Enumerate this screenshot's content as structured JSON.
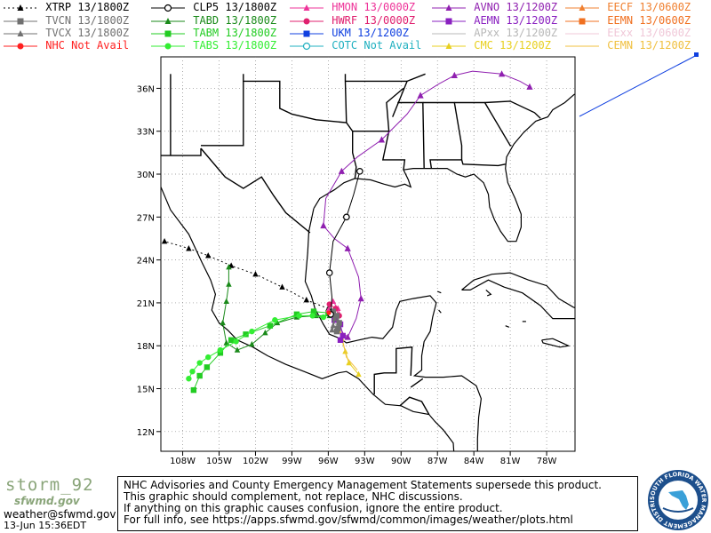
{
  "legend": [
    {
      "label": "XTRP 13/1800Z",
      "color": "#000000",
      "marker": "triangle",
      "line": "dotted"
    },
    {
      "label": "TVCN 13/1800Z",
      "color": "#707070",
      "marker": "square",
      "line": "solid"
    },
    {
      "label": "TVCX 13/1800Z",
      "color": "#707070",
      "marker": "triangle",
      "line": "solid"
    },
    {
      "label": "NHC Not Avail",
      "color": "#ff2020",
      "marker": "circle",
      "line": "solid"
    },
    {
      "label": "CLP5 13/1800Z",
      "color": "#000000",
      "marker": "circle-open",
      "line": "solid"
    },
    {
      "label": "TABD 13/1800Z",
      "color": "#1a8a1a",
      "marker": "triangle",
      "line": "solid"
    },
    {
      "label": "TABM 13/1800Z",
      "color": "#22cc22",
      "marker": "square",
      "line": "solid"
    },
    {
      "label": "TABS 13/1800Z",
      "color": "#33ee33",
      "marker": "circle",
      "line": "solid"
    },
    {
      "label": "HMON 13/0000Z",
      "color": "#ee3399",
      "marker": "triangle",
      "line": "solid"
    },
    {
      "label": "HWRF 13/0000Z",
      "color": "#e0206f",
      "marker": "circle",
      "line": "solid"
    },
    {
      "label": "UKM 13/1200Z",
      "color": "#1040e0",
      "marker": "square",
      "line": "solid"
    },
    {
      "label": "COTC Not Avail",
      "color": "#20b0c0",
      "marker": "circle-open",
      "line": "solid"
    },
    {
      "label": "AVNO 13/1200Z",
      "color": "#9020b0",
      "marker": "triangle",
      "line": "solid"
    },
    {
      "label": "AEMN 13/1200Z",
      "color": "#8a20c0",
      "marker": "square",
      "line": "solid"
    },
    {
      "label": "APxx 13/1200Z",
      "color": "#b8b8b8",
      "marker": "none",
      "line": "solid"
    },
    {
      "label": "CMC 13/1200Z",
      "color": "#e8d020",
      "marker": "triangle",
      "line": "solid"
    },
    {
      "label": "EECF 13/0600Z",
      "color": "#f08030",
      "marker": "triangle",
      "line": "solid"
    },
    {
      "label": "EEMN 13/0600Z",
      "color": "#f07020",
      "marker": "square",
      "line": "solid"
    },
    {
      "label": "EExx 13/0600Z",
      "color": "#f0c8d8",
      "marker": "none",
      "line": "solid"
    },
    {
      "label": "CEMN 13/1200Z",
      "color": "#f0c040",
      "marker": "none",
      "line": "solid"
    }
  ],
  "axes": {
    "lon_ticks": [
      "108W",
      "105W",
      "102W",
      "99W",
      "96W",
      "93W",
      "90W",
      "87W",
      "84W",
      "81W",
      "78W"
    ],
    "lat_ticks": [
      "36N",
      "33N",
      "30N",
      "27N",
      "24N",
      "21N",
      "18N",
      "15N",
      "12N"
    ]
  },
  "footer": {
    "storm_name": "storm_92",
    "logo_text": "sfwmd.gov",
    "email": "weather@sfwmd.gov",
    "timestamp": "13-Jun 15:36EDT"
  },
  "disclaimer": [
    "NHC Advisories and County Emergency Management Statements supersede this product.",
    "This graphic should complement, not replace, NHC discussions.",
    "If anything on this graphic causes confusion, ignore the entire product.",
    "For full info, see  https://apps.sfwmd.gov/sfwmd/common/images/weather/plots.html"
  ],
  "seal": {
    "text": "SOUTH FLORIDA WATER MANAGEMENT DISTRICT"
  },
  "colors": {
    "grid": "#888888",
    "coast": "#000000"
  }
}
